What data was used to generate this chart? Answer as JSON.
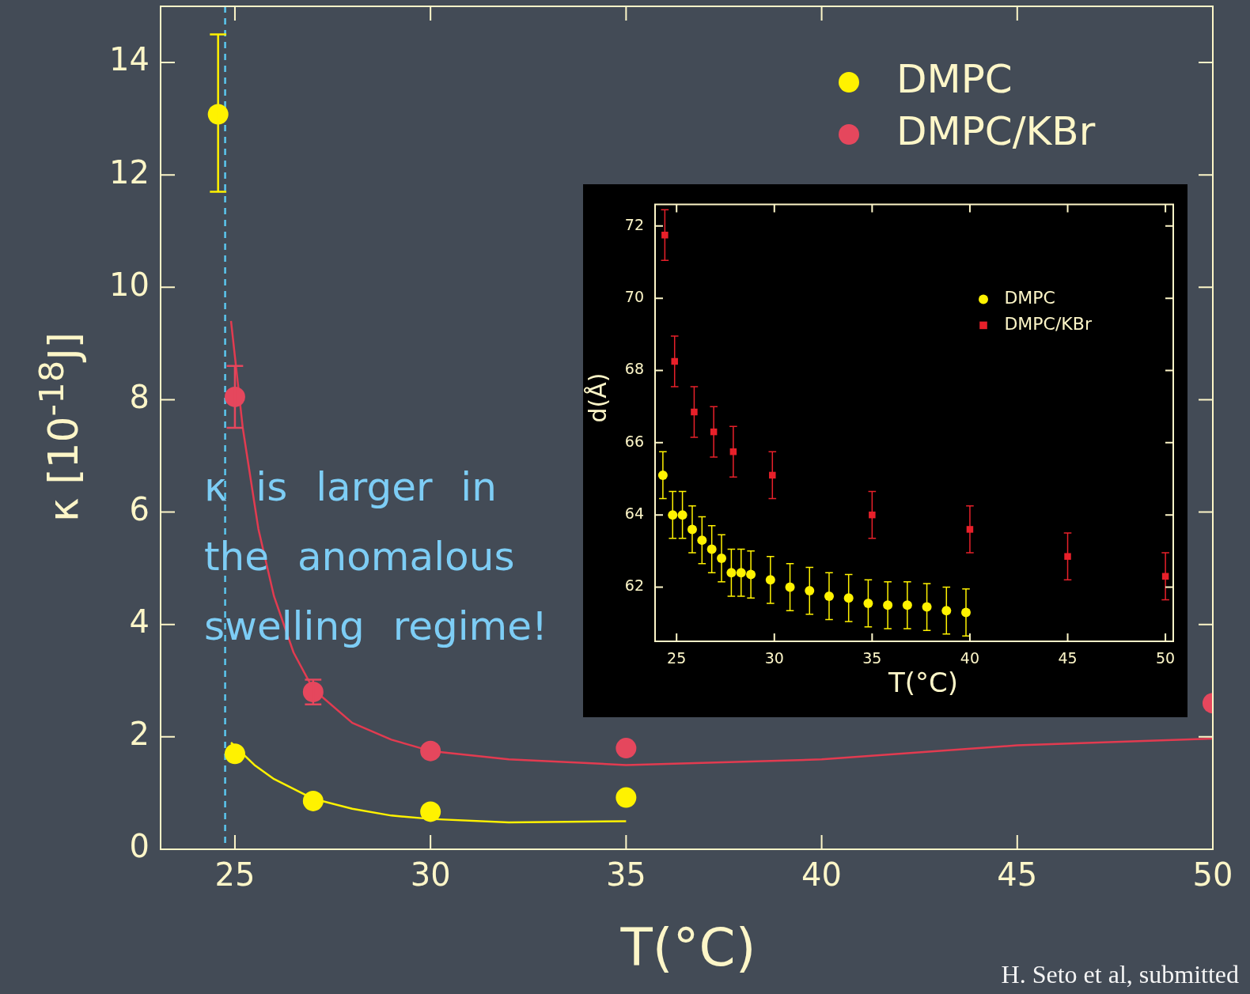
{
  "chart_data": [
    {
      "type": "scatter",
      "xlabel": "T(°C)",
      "ylabel": "κ [10$^{-18}$J]",
      "xlim": [
        23.1,
        50
      ],
      "ylim": [
        0,
        15
      ],
      "xticks": [
        25,
        30,
        35,
        40,
        45,
        50
      ],
      "yticks": [
        0,
        2,
        4,
        6,
        8,
        10,
        12,
        14
      ],
      "grid": false,
      "legend": "top right",
      "series": [
        {
          "name": "DMPC",
          "color": "#fff200",
          "marker": "circle",
          "x": [
            24.57,
            25,
            27,
            30,
            35
          ],
          "values": [
            13.08,
            1.7,
            0.86,
            0.67,
            0.92
          ],
          "errors": [
            [
              11.7,
              14.5
            ],
            null,
            null,
            null,
            null
          ]
        },
        {
          "name": "DMPC/KBr",
          "color": "#e5475d",
          "marker": "circle",
          "x": [
            25,
            27,
            30,
            35,
            50
          ],
          "values": [
            8.05,
            2.8,
            1.75,
            1.8,
            2.6
          ],
          "errors": [
            [
              7.5,
              8.6
            ],
            [
              2.58,
              3.02
            ],
            null,
            null,
            null
          ]
        },
        {
          "type": "line",
          "color": "#fff200",
          "x": [
            24.9,
            25.5,
            26,
            27,
            28,
            29,
            30,
            32,
            35
          ],
          "values": [
            1.9,
            1.5,
            1.25,
            0.9,
            0.72,
            0.6,
            0.54,
            0.48,
            0.5
          ]
        },
        {
          "type": "line",
          "color": "#e23b50",
          "x": [
            24.9,
            25.2,
            25.6,
            26,
            26.5,
            27,
            28,
            29,
            30,
            32,
            35,
            40,
            45,
            50
          ],
          "values": [
            9.4,
            7.5,
            5.7,
            4.5,
            3.5,
            2.85,
            2.25,
            1.95,
            1.75,
            1.6,
            1.5,
            1.6,
            1.85,
            1.97
          ]
        }
      ],
      "ref_lines": [
        {
          "axis": "x",
          "value": 24.75,
          "color": "#5bc8f0",
          "line_style": "dashed"
        }
      ],
      "annotations": [
        "κ is larger in the anomalous swelling regime!",
        "H. Seto et al, submitted"
      ]
    },
    {
      "type": "scatter",
      "xlabel": "T(°C)",
      "ylabel": "d(Å)",
      "xlim": [
        23.9,
        50.4
      ],
      "ylim": [
        60.5,
        72.6
      ],
      "xticks": [
        25,
        30,
        35,
        40,
        45,
        50
      ],
      "yticks": [
        62,
        64,
        66,
        68,
        70,
        72
      ],
      "grid": false,
      "legend": "top right",
      "series": [
        {
          "name": "DMPC",
          "color": "#fff200",
          "marker": "circle",
          "x": [
            24.3,
            24.8,
            25.3,
            25.8,
            26.3,
            26.8,
            27.3,
            27.8,
            28.3,
            28.8,
            29.8,
            30.8,
            31.8,
            32.8,
            33.8,
            34.8,
            35.8,
            36.8,
            37.8,
            38.8,
            39.8
          ],
          "values": [
            65.1,
            64.0,
            64.0,
            63.6,
            63.3,
            63.05,
            62.8,
            62.4,
            62.4,
            62.35,
            62.2,
            62.0,
            61.9,
            61.75,
            61.7,
            61.55,
            61.5,
            61.5,
            61.45,
            61.35,
            61.3
          ],
          "errors": [
            0.65,
            0.65,
            0.65,
            0.65,
            0.65,
            0.65,
            0.65,
            0.65,
            0.65,
            0.65,
            0.65,
            0.65,
            0.65,
            0.65,
            0.65,
            0.65,
            0.65,
            0.65,
            0.65,
            0.65,
            0.65
          ]
        },
        {
          "name": "DMPC/KBr",
          "color": "#e8202a",
          "marker": "square",
          "x": [
            24.4,
            24.9,
            25.9,
            26.9,
            27.9,
            29.9,
            35,
            40,
            45,
            50
          ],
          "values": [
            71.75,
            68.25,
            66.85,
            66.3,
            65.75,
            65.1,
            64.0,
            63.6,
            62.85,
            62.3
          ],
          "errors": [
            0.7,
            0.7,
            0.7,
            0.7,
            0.7,
            0.65,
            0.65,
            0.65,
            0.65,
            0.65
          ]
        }
      ]
    }
  ]
}
